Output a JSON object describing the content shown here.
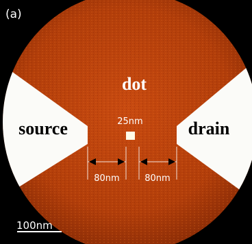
{
  "image": {
    "panel_label": "(a)",
    "labels": {
      "dot": "dot",
      "source": "source",
      "drain": "drain"
    },
    "dimensions": {
      "dot_size": "25nm",
      "left_gap": "80nm",
      "right_gap": "80nm"
    },
    "scale_bar": "100nm"
  }
}
